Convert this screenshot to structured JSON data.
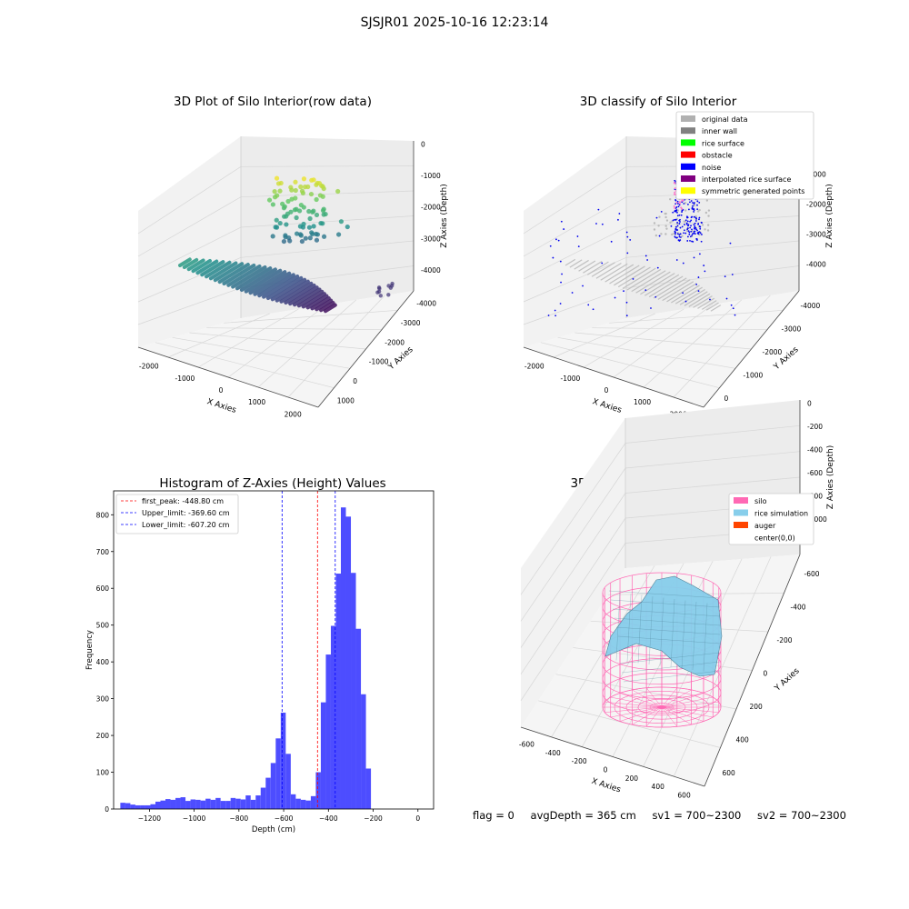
{
  "suptitle": "SJSJR01 2025-10-16 12:23:14",
  "status": {
    "flag": "flag = 0",
    "avg": "avgDepth = 365 cm",
    "sv1": "sv1 = 700~2300",
    "sv2": "sv2 = 700~2300"
  },
  "colors": {
    "hist_bar": "#4d4dff",
    "peak_line": "#ff0000",
    "limit_line": "#0000ff",
    "silo": "#ff69b4",
    "rice": "#87ceeb",
    "auger": "#ff4500",
    "gray": "#bbbbbb",
    "noise": "#0000ee"
  },
  "chart_data": [
    {
      "type": "scatter",
      "title": "3D Plot of Silo Interior(row data)",
      "xlabel": "X Axies",
      "ylabel": "Y Axies",
      "zlabel": "Z Axies (Depth)",
      "x_ticks": [
        "-2000",
        "-1000",
        "0",
        "1000",
        "2000"
      ],
      "y_ticks": [
        "1000",
        "0",
        "-1000",
        "-2000",
        "-3000",
        "-4000"
      ],
      "z_ticks": [
        "0",
        "-1000",
        "-2000",
        "-3000",
        "-4000"
      ],
      "colormap": "viridis (by depth)"
    },
    {
      "type": "scatter",
      "title": "3D classify of Silo Interior",
      "xlabel": "X Axies",
      "ylabel": "Y Axies",
      "zlabel": "Z Axies (Depth)",
      "x_ticks": [
        "-2000",
        "-1000",
        "0",
        "1000",
        "2000"
      ],
      "y_ticks": [
        "0",
        "-1000",
        "-2000",
        "-3000",
        "-4000"
      ],
      "z_ticks": [
        "-1000",
        "-2000",
        "-3000",
        "-4000"
      ],
      "legend": [
        {
          "label": "original data",
          "color": "#b0b0b0"
        },
        {
          "label": "inner wall",
          "color": "#808080"
        },
        {
          "label": "rice surface",
          "color": "#00ff00"
        },
        {
          "label": "obstacle",
          "color": "#ff0000"
        },
        {
          "label": "noise",
          "color": "#0000ff"
        },
        {
          "label": "interpolated rice surface",
          "color": "#800080"
        },
        {
          "label": "symmetric generated points",
          "color": "#ffff00"
        }
      ],
      "legend_position": "upper right"
    },
    {
      "type": "bar",
      "title": "Histogram of Z-Axies (Height) Values",
      "xlabel": "Depth (cm)",
      "ylabel": "Frequency",
      "xlim": [
        -1360,
        70
      ],
      "ylim": [
        0,
        865
      ],
      "x_ticks": [
        -1200,
        -1000,
        -800,
        -600,
        -400,
        -200,
        0
      ],
      "y_ticks": [
        0,
        100,
        200,
        300,
        400,
        500,
        600,
        700,
        800
      ],
      "bin_start": -1330,
      "bin_width": 22.4,
      "values": [
        17,
        16,
        12,
        10,
        10,
        10,
        13,
        20,
        23,
        27,
        25,
        30,
        32,
        22,
        26,
        25,
        23,
        28,
        25,
        30,
        22,
        22,
        30,
        28,
        26,
        37,
        25,
        37,
        58,
        85,
        125,
        192,
        262,
        150,
        40,
        28,
        25,
        23,
        35,
        100,
        290,
        420,
        498,
        640,
        820,
        795,
        642,
        490,
        312,
        110
      ],
      "reference_lines": [
        {
          "label": "first_peak: -448.80 cm",
          "x": -448.8,
          "color": "#ff0000"
        },
        {
          "label": "Upper_limit: -369.60 cm",
          "x": -369.6,
          "color": "#0000ff"
        },
        {
          "label": "Lower_limit: -607.20 cm",
          "x": -607.2,
          "color": "#0000ff"
        }
      ],
      "legend_position": "upper left"
    },
    {
      "type": "area",
      "title": "3D simulation of Silo Interior",
      "xlabel": "X Axies",
      "ylabel": "Y Axies",
      "zlabel": "Z Axies (Depth)",
      "x_ticks": [
        "-600",
        "-400",
        "-200",
        "0",
        "200",
        "400",
        "600"
      ],
      "y_ticks": [
        "600",
        "400",
        "200",
        "0",
        "-200",
        "-400",
        "-600"
      ],
      "z_ticks": [
        "0",
        "-200",
        "-400",
        "-600",
        "-800",
        "-1000"
      ],
      "legend": [
        {
          "label": "silo",
          "color": "#ff69b4"
        },
        {
          "label": "rice simulation",
          "color": "#87ceeb"
        },
        {
          "label": "auger",
          "color": "#ff4500"
        },
        {
          "label": "center(0,0)",
          "color": ""
        }
      ],
      "legend_position": "upper right"
    }
  ]
}
